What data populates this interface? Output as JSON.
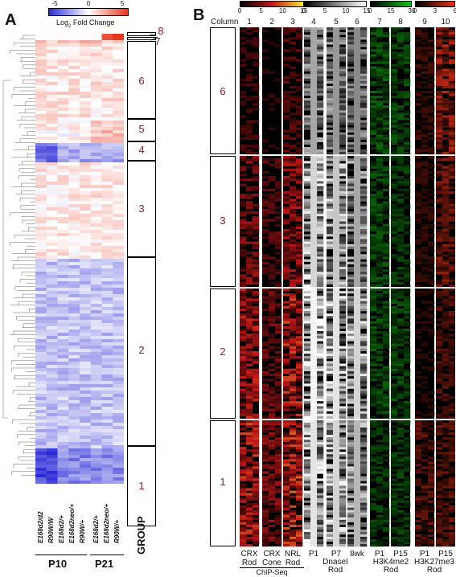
{
  "panel_a": {
    "letter": "A",
    "scale": {
      "ticks": [
        "-5",
        "0",
        "5"
      ],
      "label_main": "Log",
      "label_sub": "2",
      "label_rest": " Fold Change",
      "colors": [
        "#2b2bd6",
        "#ffffff",
        "#e8321a"
      ]
    },
    "samples": [
      "E168d2/d2",
      "R90W/W",
      "E168d2/+",
      "E168d2neo/+",
      "R90W/+",
      "E168d2/+",
      "E168d2neo/+",
      "R90W/+"
    ],
    "ages": [
      "P10",
      "P21"
    ],
    "group_header": "GROUP",
    "groups": [
      "8",
      "7",
      "6",
      "5",
      "4",
      "3",
      "2",
      "1"
    ]
  },
  "panel_b": {
    "letter": "B",
    "column_header": "Column",
    "columns": [
      "1",
      "2",
      "3",
      "4",
      "5",
      "6",
      "7",
      "8",
      "9",
      "10"
    ],
    "groups": [
      "6",
      "3",
      "2",
      "1"
    ],
    "scales": [
      {
        "ticks": [
          "0",
          "5",
          "10",
          "15"
        ],
        "colors": [
          "#000000",
          "#c0181a",
          "#f7e63a"
        ]
      },
      {
        "ticks": [
          "0",
          "5",
          "10",
          "15"
        ],
        "colors": [
          "#000000",
          "#ffffff"
        ]
      },
      {
        "ticks": [
          "0",
          "15",
          "30"
        ],
        "colors": [
          "#000000",
          "#19c019"
        ]
      },
      {
        "ticks": [
          "0",
          "3",
          "6"
        ],
        "colors": [
          "#000000",
          "#e8321a"
        ]
      }
    ],
    "track_labels": [
      {
        "l1": "CRX",
        "l2": "Rod"
      },
      {
        "l1": "CRX",
        "l2": "Cone"
      },
      {
        "l1": "NRL",
        "l2": "Rod"
      },
      {
        "l1": "P1",
        "l2": ""
      },
      {
        "l1": "P7",
        "l2": ""
      },
      {
        "l1": "8wk",
        "l2": ""
      },
      {
        "l1": "P1",
        "l2": ""
      },
      {
        "l1": "P15",
        "l2": ""
      },
      {
        "l1": "P1",
        "l2": ""
      },
      {
        "l1": "P15",
        "l2": ""
      }
    ],
    "assays": [
      {
        "l1": "ChIP-Seq",
        "l2": ""
      },
      {
        "l1": "DnaseI",
        "l2": "Rod"
      },
      {
        "l1": "H3K4me2",
        "l2": "Rod"
      },
      {
        "l1": "H3K27me3",
        "l2": "Rod"
      }
    ]
  }
}
